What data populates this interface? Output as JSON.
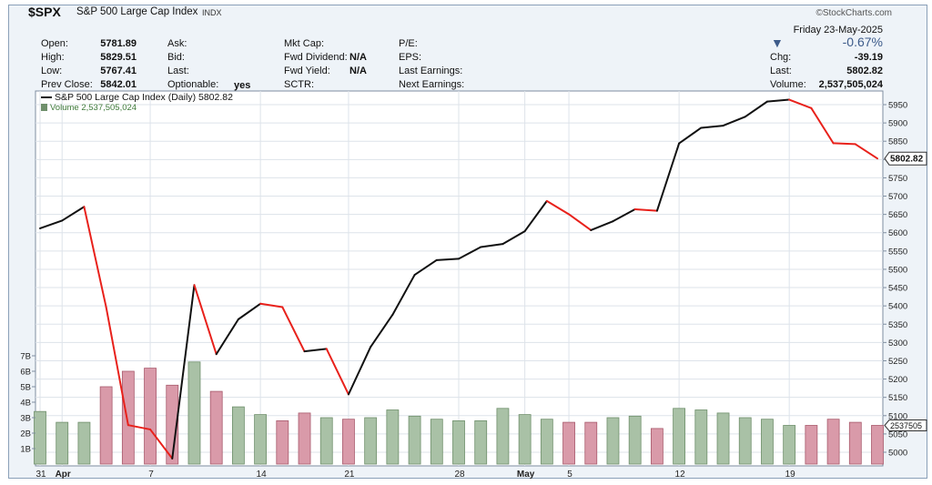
{
  "header": {
    "symbol": "$SPX",
    "name": "S&P 500 Large Cap Index",
    "exchange": "INDX",
    "brand": "©StockCharts.com",
    "date": "Friday  23-May-2025",
    "change_pct": "-0.67%",
    "arrow": "▼",
    "fields": {
      "open_label": "Open:",
      "open": "5781.89",
      "high_label": "High:",
      "high": "5829.51",
      "low_label": "Low:",
      "low": "5767.41",
      "prevclose_label": "Prev Close:",
      "prevclose": "5842.01",
      "ask_label": "Ask:",
      "bid_label": "Bid:",
      "last_label": "Last:",
      "optionable_label": "Optionable:",
      "optionable": "yes",
      "mktcap_label": "Mkt Cap:",
      "fwddiv_label": "Fwd Dividend:",
      "fwddiv": "N/A",
      "fwdyield_label": "Fwd Yield:",
      "fwdyield": "N/A",
      "sctr_label": "SCTR:",
      "pe_label": "P/E:",
      "eps_label": "EPS:",
      "lastearn_label": "Last Earnings:",
      "nextearn_label": "Next Earnings:",
      "chg_label": "Chg:",
      "chg": "-39.19",
      "last2_label": "Last:",
      "last2": "5802.82",
      "volume_label": "Volume:",
      "volume": "2,537,505,024"
    }
  },
  "legend": {
    "price": "S&P 500 Large Cap Index (Daily) 5802.82",
    "volume": "Volume 2,537,505,024"
  },
  "colors": {
    "up": "#111111",
    "down": "#e8211b",
    "vol_up_fill": "#a9c1a6",
    "vol_up_stroke": "#6f8f6b",
    "vol_down_fill": "#d99aa9",
    "vol_down_stroke": "#a85a6c",
    "arrow": "#3d5b8a",
    "change": "#3d5b8a"
  },
  "chart_data": {
    "type": "line",
    "title": "S&P 500 Large Cap Index (Daily) 5802.82",
    "x": [
      "2025-03-31",
      "2025-04-01",
      "2025-04-02",
      "2025-04-03",
      "2025-04-04",
      "2025-04-07",
      "2025-04-08",
      "2025-04-09",
      "2025-04-10",
      "2025-04-11",
      "2025-04-14",
      "2025-04-15",
      "2025-04-16",
      "2025-04-17",
      "2025-04-21",
      "2025-04-22",
      "2025-04-23",
      "2025-04-24",
      "2025-04-25",
      "2025-04-28",
      "2025-04-29",
      "2025-04-30",
      "2025-05-01",
      "2025-05-02",
      "2025-05-05",
      "2025-05-06",
      "2025-05-07",
      "2025-05-08",
      "2025-05-09",
      "2025-05-12",
      "2025-05-13",
      "2025-05-14",
      "2025-05-15",
      "2025-05-16",
      "2025-05-19",
      "2025-05-20",
      "2025-05-21",
      "2025-05-22",
      "2025-05-23"
    ],
    "series": [
      {
        "name": "S&P 500 Large Cap Index (Daily)",
        "values": [
          5611.9,
          5633.1,
          5670.9,
          5396.5,
          5074.1,
          5062.3,
          4982.8,
          5456.9,
          5268.1,
          5363.4,
          5405.9,
          5396.6,
          5275.7,
          5282.7,
          5158.2,
          5287.8,
          5375.9,
          5484.8,
          5525.2,
          5528.8,
          5560.8,
          5569.1,
          5604.1,
          5686.7,
          5650.4,
          5606.9,
          5631.3,
          5663.9,
          5659.9,
          5844.2,
          5886.6,
          5892.6,
          5916.9,
          5958.4,
          5963.6,
          5940.5,
          5844.6,
          5842.0,
          5802.8
        ]
      },
      {
        "name": "Volume",
        "values": [
          3.4,
          2.7,
          2.7,
          5.0,
          6.0,
          6.2,
          5.1,
          6.6,
          4.7,
          3.7,
          3.2,
          2.8,
          3.3,
          3.0,
          2.9,
          3.0,
          3.5,
          3.1,
          2.9,
          2.8,
          2.8,
          3.6,
          3.2,
          2.9,
          2.7,
          2.7,
          3.0,
          3.1,
          2.3,
          3.6,
          3.5,
          3.3,
          3.0,
          2.9,
          2.5,
          2.5,
          2.9,
          2.7,
          2.5
        ]
      }
    ],
    "y_ticks": [
      5000,
      5050,
      5100,
      5150,
      5200,
      5250,
      5300,
      5350,
      5400,
      5450,
      5500,
      5550,
      5600,
      5650,
      5700,
      5750,
      5800,
      5850,
      5900,
      5950
    ],
    "vol_ticks": [
      "1B",
      "2B",
      "3B",
      "4B",
      "5B",
      "6B",
      "7B"
    ],
    "x_tick_labels": [
      {
        "i": 0,
        "label": "31",
        "bold": false
      },
      {
        "i": 1,
        "label": "Apr",
        "bold": true
      },
      {
        "i": 5,
        "label": "7",
        "bold": false
      },
      {
        "i": 10,
        "label": "14",
        "bold": false
      },
      {
        "i": 14,
        "label": "21",
        "bold": false
      },
      {
        "i": 19,
        "label": "28",
        "bold": false
      },
      {
        "i": 22,
        "label": "May",
        "bold": true
      },
      {
        "i": 24,
        "label": "5",
        "bold": false
      },
      {
        "i": 29,
        "label": "12",
        "bold": false
      },
      {
        "i": 34,
        "label": "19",
        "bold": false
      }
    ],
    "last_price_label": "5802.82",
    "last_volume_label": "2537505",
    "ylim": [
      4970,
      5975
    ],
    "vol_ylim": [
      0,
      7.8
    ],
    "grid": true
  }
}
